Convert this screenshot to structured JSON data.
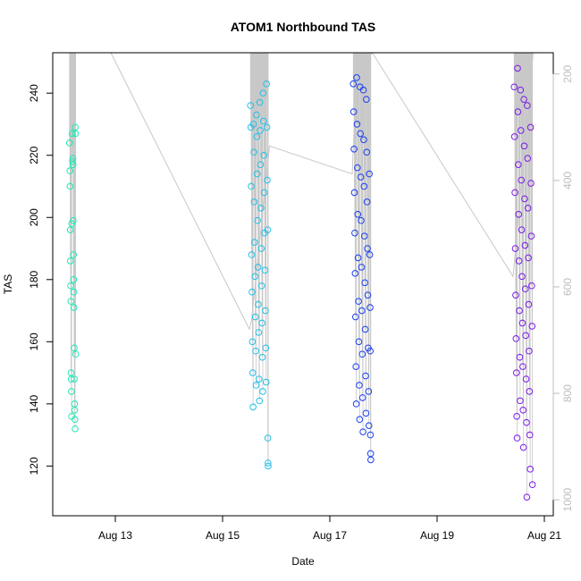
{
  "chart_data": {
    "type": "scatter",
    "title": "ATOM1 Northbound TAS",
    "xlabel": "Date",
    "ylabel": "TAS",
    "x_unit": "date",
    "x_range": [
      "2023-08-11T20:00",
      "2023-08-21T04:00"
    ],
    "x_ticks": [
      {
        "value": "2023-08-13",
        "label": "Aug 13"
      },
      {
        "value": "2023-08-15",
        "label": "Aug 15"
      },
      {
        "value": "2023-08-17",
        "label": "Aug 17"
      },
      {
        "value": "2023-08-19",
        "label": "Aug 19"
      },
      {
        "value": "2023-08-21",
        "label": "Aug 21"
      }
    ],
    "y_range": [
      104,
      253
    ],
    "y_ticks": [
      120,
      140,
      160,
      180,
      200,
      220,
      240
    ],
    "y2_range": [
      1030,
      160
    ],
    "y2_ticks": [
      200,
      400,
      600,
      800,
      1000
    ],
    "y2_color": "#bdbdbd",
    "grid": false,
    "legend": "none",
    "series_colors": [
      "#1ee8b4",
      "#22c0e8",
      "#1a3ef0",
      "#7a1ae8"
    ],
    "series": [
      {
        "color": "#1ee8b4",
        "points": [
          {
            "x": "2023-08-12T03:30",
            "y": 224
          },
          {
            "x": "2023-08-12T03:40",
            "y": 215
          },
          {
            "x": "2023-08-12T03:45",
            "y": 210
          },
          {
            "x": "2023-08-12T03:50",
            "y": 196
          },
          {
            "x": "2023-08-12T03:55",
            "y": 186
          },
          {
            "x": "2023-08-12T04:00",
            "y": 178
          },
          {
            "x": "2023-08-12T04:05",
            "y": 173
          },
          {
            "x": "2023-08-12T04:10",
            "y": 150
          },
          {
            "x": "2023-08-12T04:15",
            "y": 148
          },
          {
            "x": "2023-08-12T04:20",
            "y": 144
          },
          {
            "x": "2023-08-12T04:25",
            "y": 136
          },
          {
            "x": "2023-08-12T04:30",
            "y": 198
          },
          {
            "x": "2023-08-12T04:40",
            "y": 227
          },
          {
            "x": "2023-08-12T04:50",
            "y": 218
          },
          {
            "x": "2023-08-12T05:00",
            "y": 219
          },
          {
            "x": "2023-08-12T05:05",
            "y": 217
          },
          {
            "x": "2023-08-12T05:10",
            "y": 199
          },
          {
            "x": "2023-08-12T05:15",
            "y": 188
          },
          {
            "x": "2023-08-12T05:20",
            "y": 180
          },
          {
            "x": "2023-08-12T05:25",
            "y": 176
          },
          {
            "x": "2023-08-12T05:30",
            "y": 171
          },
          {
            "x": "2023-08-12T05:35",
            "y": 158
          },
          {
            "x": "2023-08-12T05:40",
            "y": 148
          },
          {
            "x": "2023-08-12T05:45",
            "y": 140
          },
          {
            "x": "2023-08-12T05:50",
            "y": 138
          },
          {
            "x": "2023-08-12T05:55",
            "y": 135
          },
          {
            "x": "2023-08-12T06:00",
            "y": 132
          },
          {
            "x": "2023-08-12T06:05",
            "y": 229
          },
          {
            "x": "2023-08-12T06:10",
            "y": 227
          },
          {
            "x": "2023-08-12T06:15",
            "y": 156
          }
        ]
      },
      {
        "color": "#22c0e8",
        "points": [
          {
            "x": "2023-08-15T12:30",
            "y": 236
          },
          {
            "x": "2023-08-15T12:40",
            "y": 229
          },
          {
            "x": "2023-08-15T12:50",
            "y": 210
          },
          {
            "x": "2023-08-15T13:00",
            "y": 188
          },
          {
            "x": "2023-08-15T13:10",
            "y": 176
          },
          {
            "x": "2023-08-15T13:20",
            "y": 160
          },
          {
            "x": "2023-08-15T13:30",
            "y": 150
          },
          {
            "x": "2023-08-15T13:40",
            "y": 139
          },
          {
            "x": "2023-08-15T13:50",
            "y": 230
          },
          {
            "x": "2023-08-15T14:00",
            "y": 221
          },
          {
            "x": "2023-08-15T14:10",
            "y": 205
          },
          {
            "x": "2023-08-15T14:20",
            "y": 192
          },
          {
            "x": "2023-08-15T14:30",
            "y": 181
          },
          {
            "x": "2023-08-15T14:40",
            "y": 168
          },
          {
            "x": "2023-08-15T14:50",
            "y": 157
          },
          {
            "x": "2023-08-15T15:00",
            "y": 146
          },
          {
            "x": "2023-08-15T15:10",
            "y": 233
          },
          {
            "x": "2023-08-15T15:20",
            "y": 226
          },
          {
            "x": "2023-08-15T15:30",
            "y": 214
          },
          {
            "x": "2023-08-15T15:40",
            "y": 199
          },
          {
            "x": "2023-08-15T15:50",
            "y": 184
          },
          {
            "x": "2023-08-15T16:00",
            "y": 172
          },
          {
            "x": "2023-08-15T16:10",
            "y": 163
          },
          {
            "x": "2023-08-15T16:20",
            "y": 148
          },
          {
            "x": "2023-08-15T16:30",
            "y": 141
          },
          {
            "x": "2023-08-15T16:40",
            "y": 237
          },
          {
            "x": "2023-08-15T16:50",
            "y": 228
          },
          {
            "x": "2023-08-15T17:00",
            "y": 217
          },
          {
            "x": "2023-08-15T17:10",
            "y": 203
          },
          {
            "x": "2023-08-15T17:20",
            "y": 190
          },
          {
            "x": "2023-08-15T17:30",
            "y": 178
          },
          {
            "x": "2023-08-15T17:40",
            "y": 166
          },
          {
            "x": "2023-08-15T17:50",
            "y": 155
          },
          {
            "x": "2023-08-15T18:00",
            "y": 144
          },
          {
            "x": "2023-08-15T18:10",
            "y": 240
          },
          {
            "x": "2023-08-15T18:20",
            "y": 231
          },
          {
            "x": "2023-08-15T18:30",
            "y": 220
          },
          {
            "x": "2023-08-15T18:40",
            "y": 208
          },
          {
            "x": "2023-08-15T18:50",
            "y": 195
          },
          {
            "x": "2023-08-15T19:00",
            "y": 183
          },
          {
            "x": "2023-08-15T19:10",
            "y": 170
          },
          {
            "x": "2023-08-15T19:20",
            "y": 158
          },
          {
            "x": "2023-08-15T19:30",
            "y": 147
          },
          {
            "x": "2023-08-15T19:40",
            "y": 243
          },
          {
            "x": "2023-08-15T19:50",
            "y": 229
          },
          {
            "x": "2023-08-15T20:00",
            "y": 212
          },
          {
            "x": "2023-08-15T20:10",
            "y": 196
          },
          {
            "x": "2023-08-15T20:15",
            "y": 129
          },
          {
            "x": "2023-08-15T20:20",
            "y": 121
          },
          {
            "x": "2023-08-15T20:25",
            "y": 120
          }
        ]
      },
      {
        "color": "#1a3ef0",
        "points": [
          {
            "x": "2023-08-17T10:30",
            "y": 243
          },
          {
            "x": "2023-08-17T10:40",
            "y": 234
          },
          {
            "x": "2023-08-17T10:50",
            "y": 222
          },
          {
            "x": "2023-08-17T11:00",
            "y": 208
          },
          {
            "x": "2023-08-17T11:10",
            "y": 195
          },
          {
            "x": "2023-08-17T11:20",
            "y": 182
          },
          {
            "x": "2023-08-17T11:30",
            "y": 168
          },
          {
            "x": "2023-08-17T11:40",
            "y": 152
          },
          {
            "x": "2023-08-17T11:50",
            "y": 140
          },
          {
            "x": "2023-08-17T12:00",
            "y": 245
          },
          {
            "x": "2023-08-17T12:10",
            "y": 230
          },
          {
            "x": "2023-08-17T12:20",
            "y": 216
          },
          {
            "x": "2023-08-17T12:30",
            "y": 201
          },
          {
            "x": "2023-08-17T12:40",
            "y": 187
          },
          {
            "x": "2023-08-17T12:50",
            "y": 173
          },
          {
            "x": "2023-08-17T13:00",
            "y": 160
          },
          {
            "x": "2023-08-17T13:10",
            "y": 146
          },
          {
            "x": "2023-08-17T13:20",
            "y": 135
          },
          {
            "x": "2023-08-17T13:30",
            "y": 242
          },
          {
            "x": "2023-08-17T13:40",
            "y": 227
          },
          {
            "x": "2023-08-17T13:50",
            "y": 213
          },
          {
            "x": "2023-08-17T14:00",
            "y": 199
          },
          {
            "x": "2023-08-17T14:10",
            "y": 184
          },
          {
            "x": "2023-08-17T14:20",
            "y": 170
          },
          {
            "x": "2023-08-17T14:30",
            "y": 156
          },
          {
            "x": "2023-08-17T14:40",
            "y": 142
          },
          {
            "x": "2023-08-17T14:50",
            "y": 131
          },
          {
            "x": "2023-08-17T15:00",
            "y": 241
          },
          {
            "x": "2023-08-17T15:10",
            "y": 225
          },
          {
            "x": "2023-08-17T15:20",
            "y": 210
          },
          {
            "x": "2023-08-17T15:30",
            "y": 194
          },
          {
            "x": "2023-08-17T15:40",
            "y": 179
          },
          {
            "x": "2023-08-17T15:50",
            "y": 164
          },
          {
            "x": "2023-08-17T16:00",
            "y": 149
          },
          {
            "x": "2023-08-17T16:10",
            "y": 137
          },
          {
            "x": "2023-08-17T16:20",
            "y": 238
          },
          {
            "x": "2023-08-17T16:30",
            "y": 221
          },
          {
            "x": "2023-08-17T16:40",
            "y": 205
          },
          {
            "x": "2023-08-17T16:50",
            "y": 190
          },
          {
            "x": "2023-08-17T17:00",
            "y": 175
          },
          {
            "x": "2023-08-17T17:10",
            "y": 158
          },
          {
            "x": "2023-08-17T17:20",
            "y": 144
          },
          {
            "x": "2023-08-17T17:30",
            "y": 133
          },
          {
            "x": "2023-08-17T17:40",
            "y": 214
          },
          {
            "x": "2023-08-17T17:50",
            "y": 188
          },
          {
            "x": "2023-08-17T18:00",
            "y": 171
          },
          {
            "x": "2023-08-17T18:05",
            "y": 157
          },
          {
            "x": "2023-08-17T18:10",
            "y": 130
          },
          {
            "x": "2023-08-17T18:15",
            "y": 124
          },
          {
            "x": "2023-08-17T18:20",
            "y": 122
          }
        ]
      },
      {
        "color": "#7a1ae8",
        "points": [
          {
            "x": "2023-08-20T10:30",
            "y": 242
          },
          {
            "x": "2023-08-20T10:40",
            "y": 226
          },
          {
            "x": "2023-08-20T10:50",
            "y": 208
          },
          {
            "x": "2023-08-20T11:00",
            "y": 190
          },
          {
            "x": "2023-08-20T11:10",
            "y": 175
          },
          {
            "x": "2023-08-20T11:20",
            "y": 161
          },
          {
            "x": "2023-08-20T11:30",
            "y": 150
          },
          {
            "x": "2023-08-20T11:40",
            "y": 136
          },
          {
            "x": "2023-08-20T11:50",
            "y": 129
          },
          {
            "x": "2023-08-20T12:00",
            "y": 248
          },
          {
            "x": "2023-08-20T12:10",
            "y": 234
          },
          {
            "x": "2023-08-20T12:20",
            "y": 217
          },
          {
            "x": "2023-08-20T12:30",
            "y": 201
          },
          {
            "x": "2023-08-20T12:40",
            "y": 186
          },
          {
            "x": "2023-08-20T12:50",
            "y": 170
          },
          {
            "x": "2023-08-20T13:00",
            "y": 155
          },
          {
            "x": "2023-08-20T13:10",
            "y": 141
          },
          {
            "x": "2023-08-20T13:20",
            "y": 241
          },
          {
            "x": "2023-08-20T13:30",
            "y": 228
          },
          {
            "x": "2023-08-20T13:40",
            "y": 212
          },
          {
            "x": "2023-08-20T13:50",
            "y": 196
          },
          {
            "x": "2023-08-20T14:00",
            "y": 181
          },
          {
            "x": "2023-08-20T14:10",
            "y": 166
          },
          {
            "x": "2023-08-20T14:20",
            "y": 152
          },
          {
            "x": "2023-08-20T14:30",
            "y": 138
          },
          {
            "x": "2023-08-20T14:40",
            "y": 126
          },
          {
            "x": "2023-08-20T14:50",
            "y": 238
          },
          {
            "x": "2023-08-20T15:00",
            "y": 223
          },
          {
            "x": "2023-08-20T15:10",
            "y": 206
          },
          {
            "x": "2023-08-20T15:20",
            "y": 191
          },
          {
            "x": "2023-08-20T15:30",
            "y": 177
          },
          {
            "x": "2023-08-20T15:40",
            "y": 162
          },
          {
            "x": "2023-08-20T15:50",
            "y": 148
          },
          {
            "x": "2023-08-20T16:00",
            "y": 134
          },
          {
            "x": "2023-08-20T16:10",
            "y": 110
          },
          {
            "x": "2023-08-20T16:20",
            "y": 236
          },
          {
            "x": "2023-08-20T16:30",
            "y": 219
          },
          {
            "x": "2023-08-20T16:40",
            "y": 203
          },
          {
            "x": "2023-08-20T16:50",
            "y": 187
          },
          {
            "x": "2023-08-20T17:00",
            "y": 172
          },
          {
            "x": "2023-08-20T17:10",
            "y": 157
          },
          {
            "x": "2023-08-20T17:20",
            "y": 144
          },
          {
            "x": "2023-08-20T17:30",
            "y": 130
          },
          {
            "x": "2023-08-20T17:40",
            "y": 119
          },
          {
            "x": "2023-08-20T17:50",
            "y": 229
          },
          {
            "x": "2023-08-20T18:00",
            "y": 211
          },
          {
            "x": "2023-08-20T18:10",
            "y": 194
          },
          {
            "x": "2023-08-20T18:20",
            "y": 178
          },
          {
            "x": "2023-08-20T18:30",
            "y": 165
          },
          {
            "x": "2023-08-20T18:40",
            "y": 114
          }
        ]
      }
    ],
    "connector_line": {
      "color": "#c8c8c8",
      "points": [
        {
          "x": "2023-08-12T06:00",
          "y": 253
        },
        {
          "x": "2023-08-12T22:00",
          "y": 253
        },
        {
          "x": "2023-08-15T12:00",
          "y": 164
        },
        {
          "x": "2023-08-15T13:00",
          "y": 167
        },
        {
          "x": "2023-08-15T21:00",
          "y": 223
        },
        {
          "x": "2023-08-17T10:00",
          "y": 214
        },
        {
          "x": "2023-08-17T12:00",
          "y": 246
        },
        {
          "x": "2023-08-17T19:00",
          "y": 253
        },
        {
          "x": "2023-08-20T10:00",
          "y": 181
        },
        {
          "x": "2023-08-20T19:00",
          "y": 253
        }
      ]
    }
  }
}
